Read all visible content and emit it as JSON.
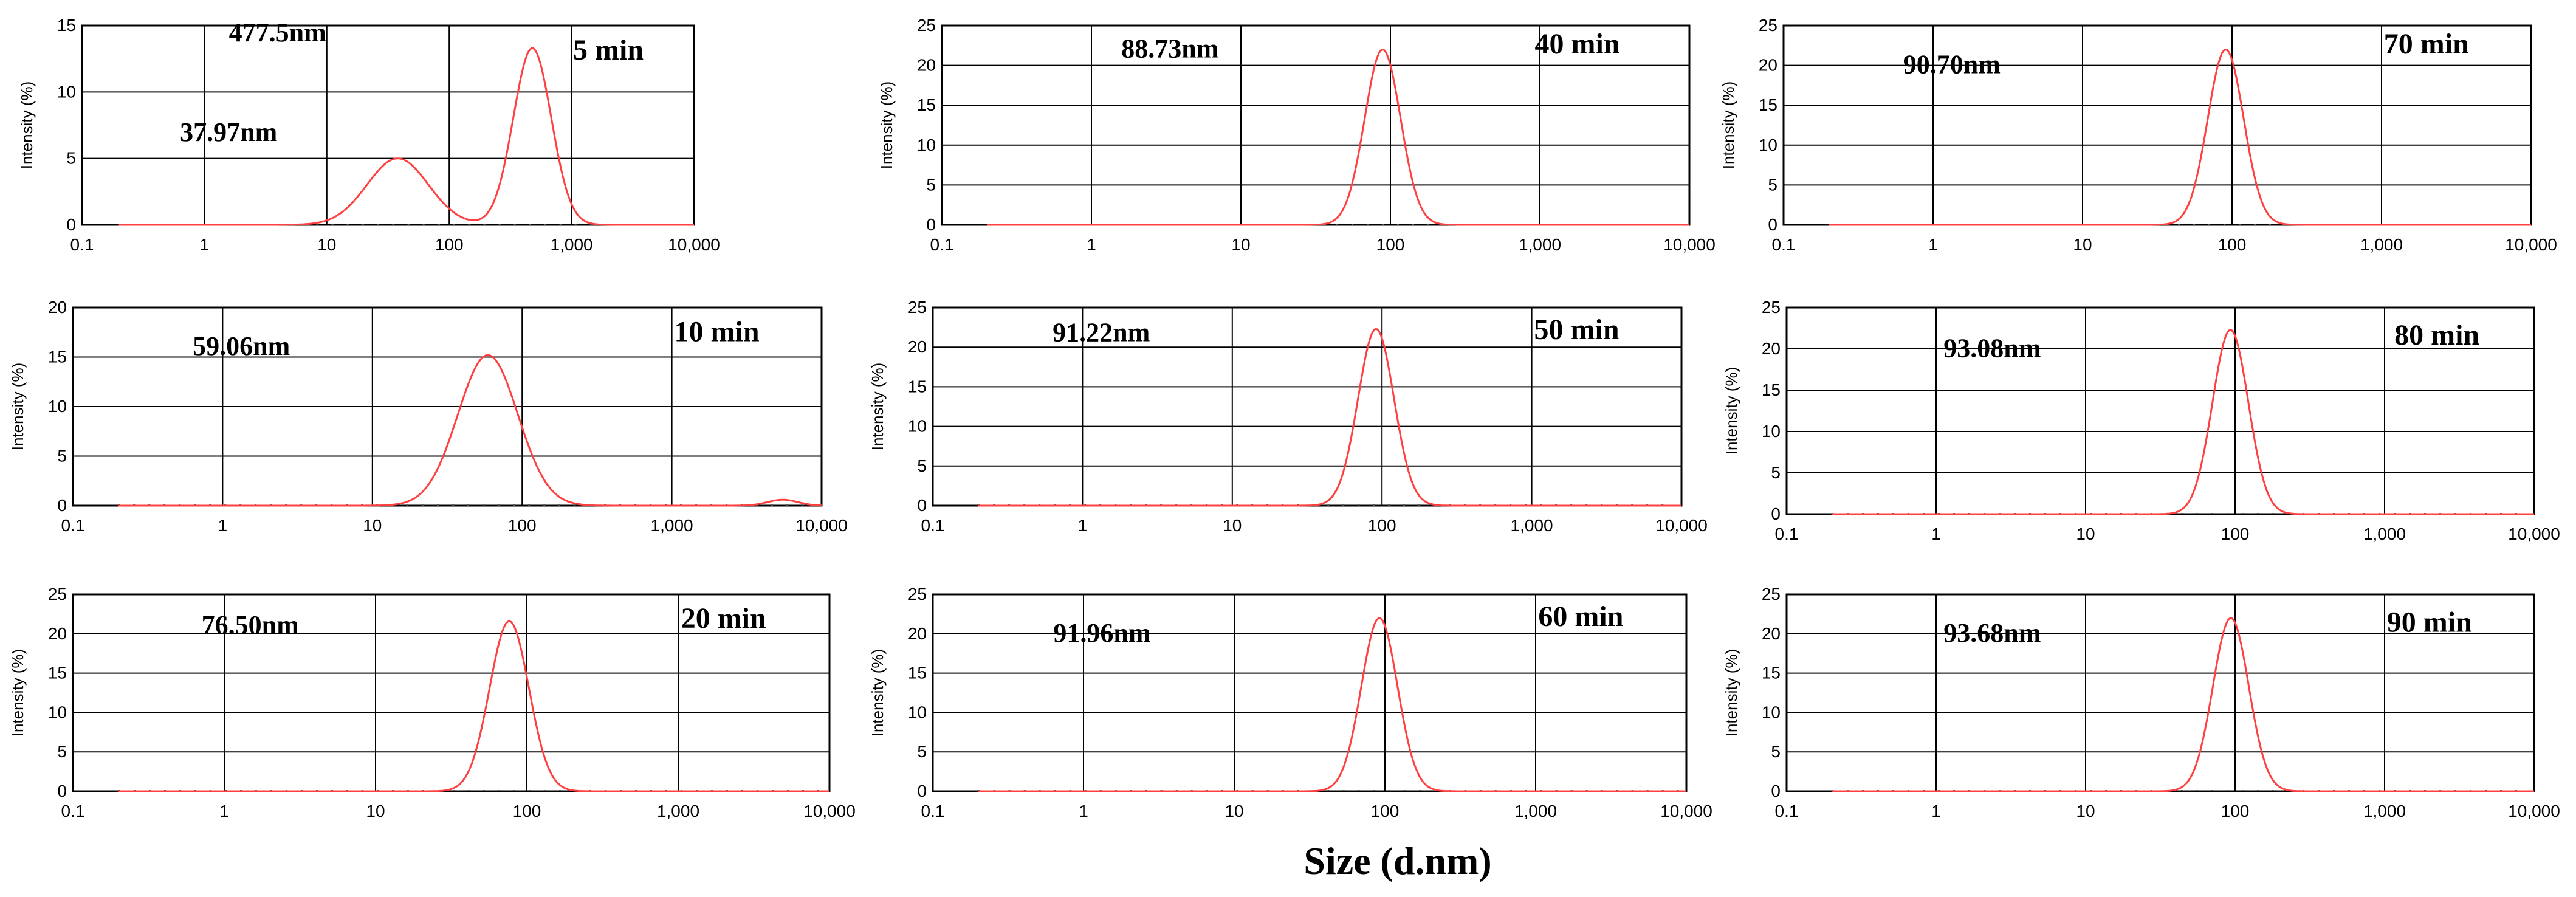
{
  "chart_data": {
    "type": "line",
    "xlabel": "Size (d.nm)",
    "line_color": "#ff4040",
    "x_ticks": [
      "0.1",
      "1",
      "10",
      "100",
      "1,000",
      "10,000"
    ],
    "xlim": [
      0.1,
      10000
    ],
    "x_scale": "log",
    "panels": [
      {
        "id": "p5",
        "time": "5 min",
        "ylabel": "Intensity (%)",
        "ylim": [
          0,
          15
        ],
        "y_ticks": [
          "0",
          "5",
          "10",
          "15"
        ],
        "peaks": [
          {
            "center": 37.97,
            "height": 5.0,
            "sigma": 0.25,
            "label": "37.97nm"
          },
          {
            "center": 477.5,
            "height": 13.3,
            "sigma": 0.155,
            "label": "477.5nm"
          }
        ]
      },
      {
        "id": "p40",
        "time": "40 min",
        "ylabel": "Intensity (%)",
        "ylim": [
          0,
          25
        ],
        "y_ticks": [
          "0",
          "5",
          "10",
          "15",
          "20",
          "25"
        ],
        "peaks": [
          {
            "center": 88.73,
            "height": 22.0,
            "sigma": 0.12,
            "label": "88.73nm"
          }
        ]
      },
      {
        "id": "p70",
        "time": "70 min",
        "ylabel": "Intensity (%)",
        "ylim": [
          0,
          25
        ],
        "y_ticks": [
          "0",
          "5",
          "10",
          "15",
          "20",
          "25"
        ],
        "peaks": [
          {
            "center": 90.7,
            "height": 22.0,
            "sigma": 0.12,
            "label": "90.70nm"
          }
        ]
      },
      {
        "id": "p10",
        "time": "10 min",
        "ylabel": "Intensity (%)",
        "ylim": [
          0,
          20
        ],
        "y_ticks": [
          "0",
          "5",
          "10",
          "15",
          "20"
        ],
        "peaks": [
          {
            "center": 59.06,
            "height": 15.2,
            "sigma": 0.2,
            "label": "59.06nm"
          },
          {
            "center": 5500,
            "height": 0.6,
            "sigma": 0.1
          }
        ]
      },
      {
        "id": "p50",
        "time": "50 min",
        "ylabel": "Intensity (%)",
        "ylim": [
          0,
          25
        ],
        "y_ticks": [
          "0",
          "5",
          "10",
          "15",
          "20",
          "25"
        ],
        "peaks": [
          {
            "center": 91.22,
            "height": 22.3,
            "sigma": 0.12,
            "label": "91.22nm"
          }
        ]
      },
      {
        "id": "p80",
        "time": "80 min",
        "ylabel": "Intensity (%)",
        "ylim": [
          0,
          25
        ],
        "y_ticks": [
          "0",
          "5",
          "10",
          "15",
          "20",
          "25"
        ],
        "peaks": [
          {
            "center": 93.08,
            "height": 22.3,
            "sigma": 0.12,
            "label": "93.08nm"
          }
        ]
      },
      {
        "id": "p20",
        "time": "20 min",
        "ylabel": "Intensity (%)",
        "ylim": [
          0,
          25
        ],
        "y_ticks": [
          "0",
          "5",
          "10",
          "15",
          "20",
          "25"
        ],
        "peaks": [
          {
            "center": 76.5,
            "height": 21.6,
            "sigma": 0.13,
            "label": "76.50nm"
          }
        ]
      },
      {
        "id": "p60",
        "time": "60 min",
        "ylabel": "Intensity (%)",
        "ylim": [
          0,
          25
        ],
        "y_ticks": [
          "0",
          "5",
          "10",
          "15",
          "20",
          "25"
        ],
        "peaks": [
          {
            "center": 91.96,
            "height": 22.0,
            "sigma": 0.12,
            "label": "91.96nm"
          }
        ]
      },
      {
        "id": "p90",
        "time": "90 min",
        "ylabel": "Intensity (%)",
        "ylim": [
          0,
          25
        ],
        "y_ticks": [
          "0",
          "5",
          "10",
          "15",
          "20",
          "25"
        ],
        "peaks": [
          {
            "center": 93.68,
            "height": 22.0,
            "sigma": 0.12,
            "label": "93.68nm"
          }
        ]
      }
    ]
  }
}
